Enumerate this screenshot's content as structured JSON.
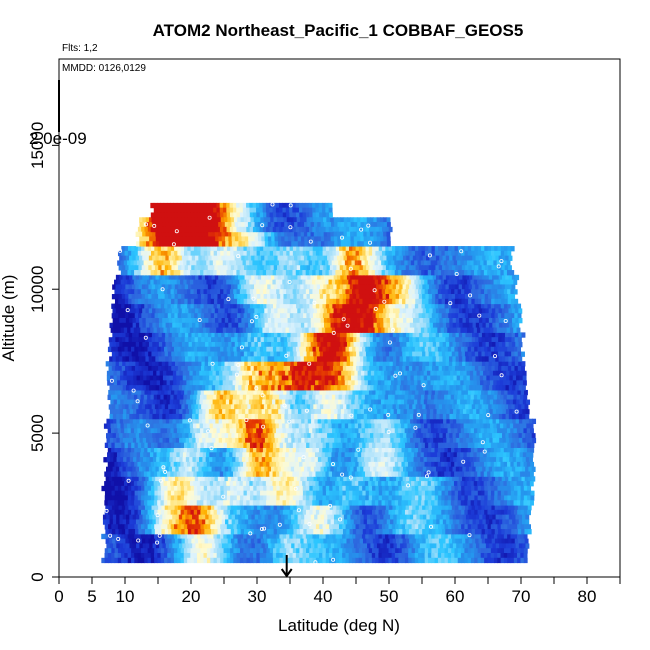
{
  "chart_data": {
    "type": "heatmap",
    "title": "ATOM2 Northeast_Pacific_1 COBBAF_GEOS5",
    "subtitle_lines": [
      "Flts: 1,2",
      "MMDD: 0126,0129"
    ],
    "xlabel": "Latitude (deg N)",
    "ylabel": "Altitude (m)",
    "xlim": [
      0,
      85
    ],
    "ylim": [
      0,
      18000
    ],
    "xticks": [
      0,
      5,
      10,
      20,
      30,
      40,
      50,
      60,
      70,
      80
    ],
    "yticks": [
      0,
      5000,
      10000,
      15000
    ],
    "scale_label": "2.0e-09",
    "marker_latitude": 34.5,
    "colormap": [
      "#1010a8",
      "#1c3cd8",
      "#2f6ee0",
      "#2596ee",
      "#2cc6ff",
      "#9cdcfa",
      "#def3fc",
      "#fffbd0",
      "#ffe070",
      "#ffb000",
      "#e84000",
      "#d01010"
    ],
    "cloud_layers": [
      {
        "y": 1000,
        "x0": 6.8,
        "x1": 70.8,
        "hot": [
          [
            16,
            0.0
          ],
          [
            21,
            0.3
          ],
          [
            34,
            0.3
          ],
          [
            46,
            0.0
          ],
          [
            56,
            0.1
          ]
        ]
      },
      {
        "y": 2000,
        "x0": 6.8,
        "x1": 71.2,
        "hot": [
          [
            16,
            0.35
          ],
          [
            21,
            0.5
          ],
          [
            28,
            0.2
          ],
          [
            40,
            0.3
          ],
          [
            52,
            0.15
          ]
        ]
      },
      {
        "y": 3000,
        "x0": 6.8,
        "x1": 71.6,
        "hot": [
          [
            18,
            0.4
          ],
          [
            26,
            0.45
          ],
          [
            34,
            0.35
          ],
          [
            44,
            0.3
          ],
          [
            56,
            0.15
          ]
        ]
      },
      {
        "y": 4000,
        "x0": 7.0,
        "x1": 71.6,
        "hot": [
          [
            20,
            0.35
          ],
          [
            30,
            0.5
          ],
          [
            38,
            0.4
          ],
          [
            48,
            0.25
          ]
        ]
      },
      {
        "y": 5000,
        "x0": 7.0,
        "x1": 71.6,
        "hot": [
          [
            22,
            0.45
          ],
          [
            30,
            0.6
          ],
          [
            38,
            0.4
          ],
          [
            50,
            0.2
          ]
        ]
      },
      {
        "y": 6000,
        "x0": 7.4,
        "x1": 70.8,
        "hot": [
          [
            24,
            0.45
          ],
          [
            32,
            0.55
          ],
          [
            40,
            0.35
          ],
          [
            52,
            0.2
          ]
        ]
      },
      {
        "y": 7000,
        "x0": 7.4,
        "x1": 70.4,
        "hot": [
          [
            30,
            0.6
          ],
          [
            36,
            0.7
          ],
          [
            42,
            0.5
          ],
          [
            50,
            0.2
          ]
        ]
      },
      {
        "y": 8000,
        "x0": 7.8,
        "x1": 70.0,
        "hot": [
          [
            30,
            0.3
          ],
          [
            40,
            0.6
          ],
          [
            44,
            0.4
          ],
          [
            54,
            0.1
          ]
        ]
      },
      {
        "y": 9000,
        "x0": 8.0,
        "x1": 69.6,
        "hot": [
          [
            32,
            0.3
          ],
          [
            42,
            0.6
          ],
          [
            46,
            0.7
          ],
          [
            52,
            0.2
          ]
        ]
      },
      {
        "y": 10000,
        "x0": 8.4,
        "x1": 69.2,
        "hot": [
          [
            30,
            0.3
          ],
          [
            40,
            0.5
          ],
          [
            46,
            0.8
          ],
          [
            52,
            0.3
          ]
        ]
      },
      {
        "y": 11000,
        "x0": 9.2,
        "x1": 68.4,
        "hot": [
          [
            16,
            0.6
          ],
          [
            24,
            0.4
          ],
          [
            36,
            0.3
          ],
          [
            44,
            0.55
          ],
          [
            58,
            0.1
          ]
        ]
      },
      {
        "y": 12000,
        "x0": 12.0,
        "x1": 50.0,
        "hot": [
          [
            14,
            0.5
          ],
          [
            18,
            0.85
          ],
          [
            22,
            0.6
          ],
          [
            28,
            0.3
          ],
          [
            36,
            0.1
          ]
        ]
      },
      {
        "y": 12500,
        "x0": 14.0,
        "x1": 41.0,
        "hot": [
          [
            14,
            1.0
          ],
          [
            18,
            0.95
          ],
          [
            22,
            0.6
          ],
          [
            28,
            0.2
          ]
        ]
      }
    ]
  }
}
